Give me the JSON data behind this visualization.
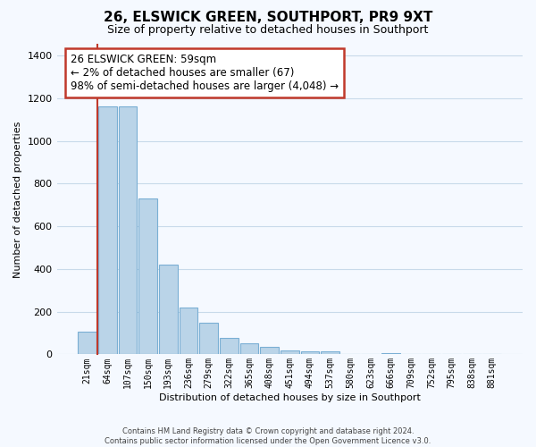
{
  "title": "26, ELSWICK GREEN, SOUTHPORT, PR9 9XT",
  "subtitle": "Size of property relative to detached houses in Southport",
  "xlabel": "Distribution of detached houses by size in Southport",
  "ylabel": "Number of detached properties",
  "bar_labels": [
    "21sqm",
    "64sqm",
    "107sqm",
    "150sqm",
    "193sqm",
    "236sqm",
    "279sqm",
    "322sqm",
    "365sqm",
    "408sqm",
    "451sqm",
    "494sqm",
    "537sqm",
    "580sqm",
    "623sqm",
    "666sqm",
    "709sqm",
    "752sqm",
    "795sqm",
    "838sqm",
    "881sqm"
  ],
  "bar_values": [
    108,
    1160,
    1160,
    730,
    420,
    220,
    150,
    75,
    50,
    35,
    20,
    15,
    15,
    0,
    0,
    5,
    0,
    0,
    0,
    0,
    0
  ],
  "bar_color": "#bad4e8",
  "bar_edge_color": "#7aafd4",
  "highlight_color": "#c0392b",
  "annotation_text_line1": "26 ELSWICK GREEN: 59sqm",
  "annotation_text_line2": "← 2% of detached houses are smaller (67)",
  "annotation_text_line3": "98% of semi-detached houses are larger (4,048) →",
  "annotation_box_color": "#ffffff",
  "annotation_box_edge": "#c0392b",
  "ylim": [
    0,
    1450
  ],
  "yticks": [
    0,
    200,
    400,
    600,
    800,
    1000,
    1200,
    1400
  ],
  "footer_line1": "Contains HM Land Registry data © Crown copyright and database right 2024.",
  "footer_line2": "Contains public sector information licensed under the Open Government Licence v3.0.",
  "background_color": "#f5f9ff",
  "grid_color": "#c8daea"
}
